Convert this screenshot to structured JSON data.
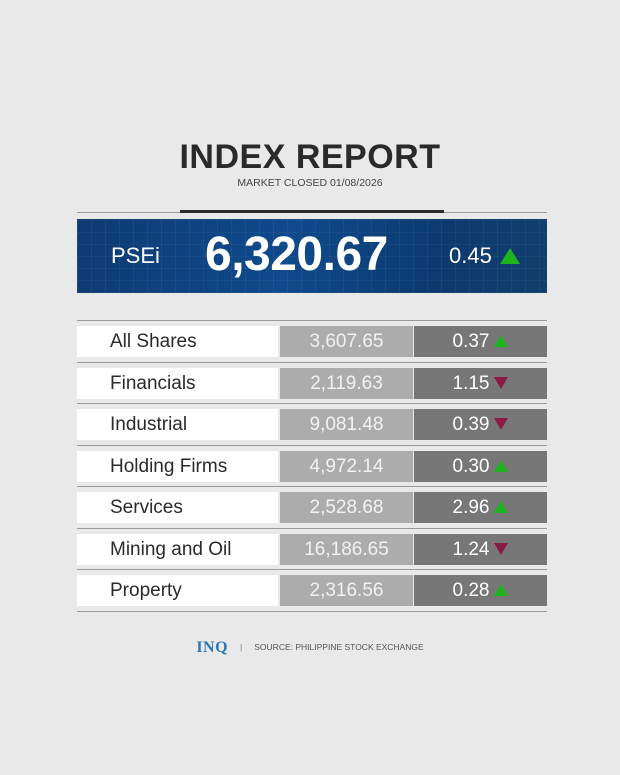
{
  "header": {
    "title": "INDEX REPORT",
    "subtitle": "MARKET CLOSED 01/08/2026"
  },
  "psei": {
    "label": "PSEi",
    "value": "6,320.67",
    "change": "0.45",
    "direction": "up"
  },
  "colors": {
    "up": "#1db31d",
    "down": "#8b1a45",
    "banner": "#0f4a8c"
  },
  "rows": [
    {
      "name": "All Shares",
      "value": "3,607.65",
      "change": "0.37",
      "direction": "up"
    },
    {
      "name": "Financials",
      "value": "2,119.63",
      "change": "1.15",
      "direction": "down"
    },
    {
      "name": "Industrial",
      "value": "9,081.48",
      "change": "0.39",
      "direction": "down"
    },
    {
      "name": "Holding Firms",
      "value": "4,972.14",
      "change": "0.30",
      "direction": "up"
    },
    {
      "name": "Services",
      "value": "2,528.68",
      "change": "2.96",
      "direction": "up"
    },
    {
      "name": "Mining and Oil",
      "value": "16,186.65",
      "change": "1.24",
      "direction": "down"
    },
    {
      "name": "Property",
      "value": "2,316.56",
      "change": "0.28",
      "direction": "up"
    }
  ],
  "footer": {
    "logo": "INQ",
    "separator": "|",
    "source": "SOURCE: PHILIPPINE STOCK EXCHANGE"
  }
}
